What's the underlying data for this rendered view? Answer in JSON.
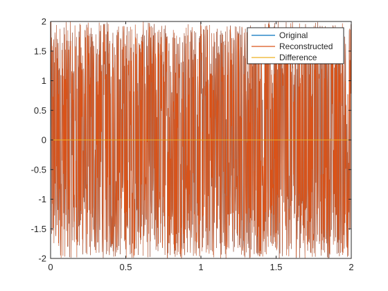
{
  "chart_data": {
    "type": "line",
    "title": "",
    "xlabel": "",
    "ylabel": "",
    "xlim": [
      0,
      2
    ],
    "ylim": [
      -2,
      2
    ],
    "x_ticks": [
      0,
      0.5,
      1,
      1.5,
      2
    ],
    "x_tick_labels": [
      "0",
      "0.5",
      "1",
      "1.5",
      "2"
    ],
    "y_ticks": [
      -2,
      -1.5,
      -1,
      -0.5,
      0,
      0.5,
      1,
      1.5,
      2
    ],
    "y_tick_labels": [
      "-2",
      "-1.5",
      "-1",
      "-0.5",
      "0",
      "0.5",
      "1",
      "1.5",
      "2"
    ],
    "grid": false,
    "legend_position": "top-right",
    "series": [
      {
        "name": "Original",
        "color": "#0072BD",
        "description_level": "oscillating signal between about -2 and 2 over 0 to 2",
        "amplitude_range": [
          -2,
          2
        ]
      },
      {
        "name": "Reconstructed",
        "color": "#D95319",
        "amplitude_range": [
          -2,
          2
        ]
      },
      {
        "name": "Difference",
        "color": "#EDB120",
        "values_constant": 0
      }
    ]
  }
}
